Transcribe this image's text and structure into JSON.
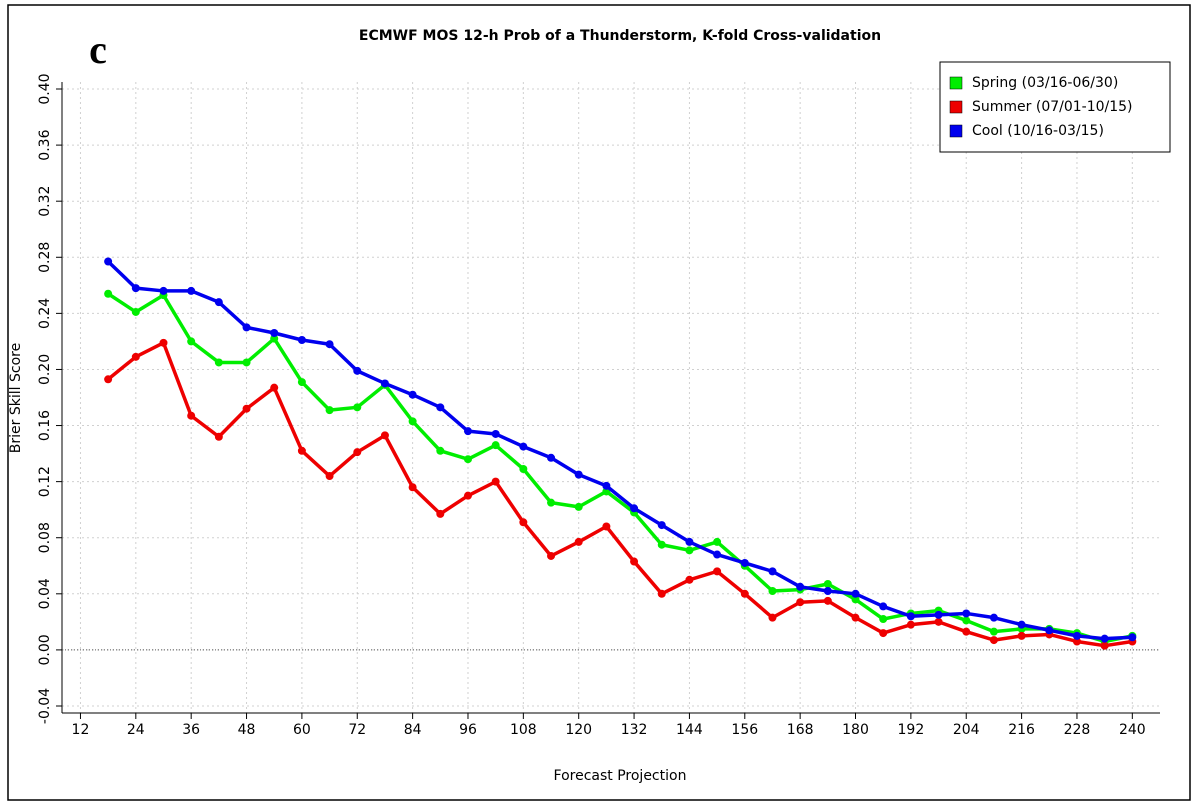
{
  "chart_data": {
    "type": "line",
    "title": "ECMWF MOS 12-h Prob of a Thunderstorm, K-fold Cross-validation",
    "panel_label": "c",
    "x_label": "Forecast Projection",
    "y_label": "Brier Skill Score",
    "x": [
      18,
      24,
      30,
      36,
      42,
      48,
      54,
      60,
      66,
      72,
      78,
      84,
      90,
      96,
      102,
      108,
      114,
      120,
      126,
      132,
      138,
      144,
      150,
      156,
      162,
      168,
      174,
      180,
      186,
      192,
      198,
      204,
      210,
      216,
      222,
      228,
      234,
      240
    ],
    "series": [
      {
        "name": "Spring (03/16-06/30)",
        "color": "#00ee00",
        "values": [
          0.254,
          0.241,
          0.253,
          0.22,
          0.205,
          0.205,
          0.222,
          0.191,
          0.171,
          0.173,
          0.189,
          0.163,
          0.142,
          0.136,
          0.146,
          0.129,
          0.105,
          0.102,
          0.113,
          0.098,
          0.075,
          0.071,
          0.077,
          0.06,
          0.042,
          0.043,
          0.047,
          0.036,
          0.022,
          0.026,
          0.028,
          0.021,
          0.013,
          0.015,
          0.015,
          0.012,
          0.006,
          0.01
        ]
      },
      {
        "name": "Summer (07/01-10/15)",
        "color": "#ee0000",
        "values": [
          0.193,
          0.209,
          0.219,
          0.167,
          0.152,
          0.172,
          0.187,
          0.142,
          0.124,
          0.141,
          0.153,
          0.116,
          0.097,
          0.11,
          0.12,
          0.091,
          0.067,
          0.077,
          0.088,
          0.063,
          0.04,
          0.05,
          0.056,
          0.04,
          0.023,
          0.034,
          0.035,
          0.023,
          0.012,
          0.018,
          0.02,
          0.013,
          0.007,
          0.01,
          0.011,
          0.006,
          0.003,
          0.006
        ]
      },
      {
        "name": "Cool (10/16-03/15)",
        "color": "#0000ee",
        "values": [
          0.277,
          0.258,
          0.256,
          0.256,
          0.248,
          0.23,
          0.226,
          0.221,
          0.218,
          0.199,
          0.19,
          0.182,
          0.173,
          0.156,
          0.154,
          0.145,
          0.137,
          0.125,
          0.117,
          0.101,
          0.089,
          0.077,
          0.068,
          0.062,
          0.056,
          0.045,
          0.042,
          0.04,
          0.031,
          0.024,
          0.025,
          0.026,
          0.023,
          0.018,
          0.014,
          0.01,
          0.008,
          0.009
        ]
      }
    ],
    "xlim": [
      8,
      246
    ],
    "xticks": [
      12,
      24,
      36,
      48,
      60,
      72,
      84,
      96,
      108,
      120,
      132,
      144,
      156,
      168,
      180,
      192,
      204,
      216,
      228,
      240
    ],
    "ylim": [
      -0.045,
      0.405
    ],
    "yticks": [
      {
        "value": -0.04,
        "label": "-0.04"
      },
      {
        "value": 0,
        "label": "0.00"
      },
      {
        "value": 0.04,
        "label": "0.04"
      },
      {
        "value": 0.08,
        "label": "0.08"
      },
      {
        "value": 0.12,
        "label": "0.12"
      },
      {
        "value": 0.16,
        "label": "0.16"
      },
      {
        "value": 0.2,
        "label": "0.20"
      },
      {
        "value": 0.24,
        "label": "0.24"
      },
      {
        "value": 0.28,
        "label": "0.28"
      },
      {
        "value": 0.32,
        "label": "0.32"
      },
      {
        "value": 0.36,
        "label": "0.36"
      },
      {
        "value": 0.4,
        "label": "0.40"
      }
    ],
    "reference_line": 0,
    "grid": true,
    "legend": "top-right"
  }
}
